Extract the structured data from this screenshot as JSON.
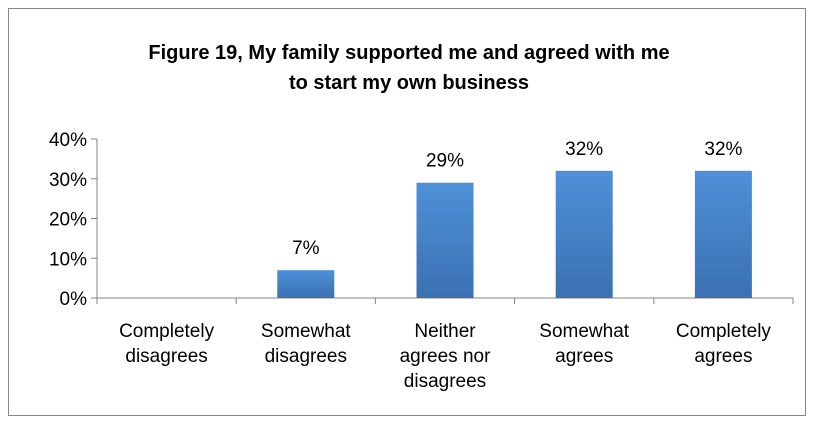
{
  "chart_data": {
    "type": "bar",
    "title_lines": [
      "Figure 19, My family supported me and agreed with me",
      "to start my own business"
    ],
    "categories": [
      [
        "Completely",
        "disagrees"
      ],
      [
        "Somewhat",
        "disagrees"
      ],
      [
        "Neither",
        "agrees nor",
        "disagrees"
      ],
      [
        "Somewhat",
        "agrees"
      ],
      [
        "Completely",
        "agrees"
      ]
    ],
    "values": [
      0,
      7,
      29,
      32,
      32
    ],
    "data_labels": [
      "",
      "7%",
      "29%",
      "32%",
      "32%"
    ],
    "ylim": [
      0,
      40
    ],
    "yticks": [
      0,
      10,
      20,
      30,
      40
    ],
    "ytick_labels": [
      "0%",
      "10%",
      "20%",
      "30%",
      "40%"
    ],
    "grid": false,
    "legend": "none",
    "bar_color": "#4a86c8"
  }
}
